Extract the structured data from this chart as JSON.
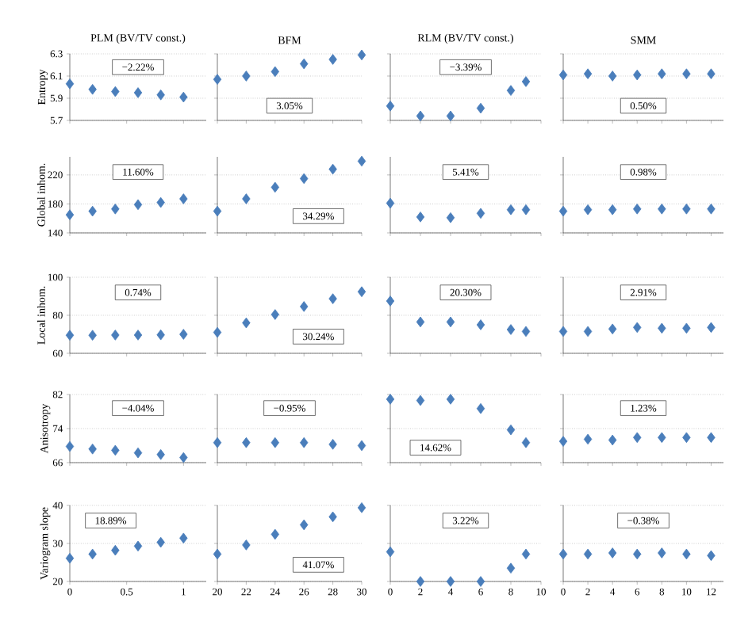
{
  "chart_data": [
    {
      "type": "scatter",
      "title": "PLM (BV/TV const.)",
      "ylabel": "Entropy",
      "x": [
        0,
        0.2,
        0.4,
        0.6,
        0.8,
        1
      ],
      "values": [
        6.03,
        5.98,
        5.96,
        5.95,
        5.93,
        5.91
      ],
      "color": "#4a7ebb",
      "marker": "diamond",
      "grid": "y",
      "xlim": [
        0,
        1.2
      ],
      "xticks": [
        0,
        0.5,
        1
      ],
      "ylim": [
        5.7,
        6.3
      ],
      "yticks": [
        5.7,
        5.9,
        6.1,
        6.3
      ],
      "tick_labels": "y",
      "annotations": [
        "−2.22%"
      ]
    },
    {
      "type": "scatter",
      "title": "BFM",
      "x": [
        20,
        22,
        24,
        26,
        28,
        30
      ],
      "values": [
        6.07,
        6.1,
        6.14,
        6.21,
        6.25,
        6.29
      ],
      "color": "#4a7ebb",
      "marker": "diamond",
      "grid": "y",
      "xlim": [
        20,
        30
      ],
      "xticks": [
        20,
        22,
        24,
        26,
        28,
        30
      ],
      "ylim": [
        5.7,
        6.3
      ],
      "yticks": [
        5.7,
        5.9,
        6.1,
        6.3
      ],
      "tick_labels": false,
      "annotations": [
        "3.05%"
      ]
    },
    {
      "type": "scatter",
      "title": "RLM (BV/TV const.)",
      "x": [
        0,
        2,
        4,
        6,
        8,
        9
      ],
      "values": [
        5.83,
        5.74,
        5.74,
        5.81,
        5.97,
        6.05
      ],
      "color": "#4a7ebb",
      "marker": "diamond",
      "grid": "y",
      "xlim": [
        0,
        10
      ],
      "xticks": [
        0,
        2,
        4,
        6,
        8,
        10
      ],
      "ylim": [
        5.7,
        6.3
      ],
      "yticks": [
        5.7,
        5.9,
        6.1,
        6.3
      ],
      "tick_labels": false,
      "annotations": [
        "−3.39%"
      ]
    },
    {
      "type": "scatter",
      "title": "SMM",
      "x": [
        0,
        2,
        4,
        6,
        8,
        10,
        12
      ],
      "values": [
        6.11,
        6.12,
        6.1,
        6.11,
        6.12,
        6.12,
        6.12
      ],
      "color": "#4a7ebb",
      "marker": "diamond",
      "grid": "y",
      "xlim": [
        0,
        13
      ],
      "xticks": [
        0,
        2,
        4,
        6,
        8,
        10,
        12
      ],
      "ylim": [
        5.7,
        6.3
      ],
      "yticks": [
        5.7,
        5.9,
        6.1,
        6.3
      ],
      "tick_labels": false,
      "annotations": [
        "0.50%"
      ]
    },
    {
      "type": "scatter",
      "ylabel": "Global inhom.",
      "x": [
        0,
        0.2,
        0.4,
        0.6,
        0.8,
        1
      ],
      "values": [
        165,
        170,
        173,
        179,
        182,
        187
      ],
      "color": "#4a7ebb",
      "marker": "diamond",
      "grid": "y",
      "xlim": [
        0,
        1.2
      ],
      "xticks": [
        0,
        0.5,
        1
      ],
      "ylim": [
        140,
        245
      ],
      "yticks": [
        140,
        180,
        220
      ],
      "tick_labels": "y",
      "annotations": [
        "11.60%"
      ]
    },
    {
      "type": "scatter",
      "x": [
        20,
        22,
        24,
        26,
        28,
        30
      ],
      "values": [
        170,
        187,
        203,
        215,
        228,
        239
      ],
      "color": "#4a7ebb",
      "marker": "diamond",
      "grid": "y",
      "xlim": [
        20,
        30
      ],
      "xticks": [
        20,
        22,
        24,
        26,
        28,
        30
      ],
      "ylim": [
        140,
        245
      ],
      "yticks": [
        140,
        180,
        220
      ],
      "tick_labels": false,
      "annotations": [
        "34.29%"
      ]
    },
    {
      "type": "scatter",
      "x": [
        0,
        2,
        4,
        6,
        8,
        9
      ],
      "values": [
        181,
        162,
        161,
        167,
        172,
        172
      ],
      "color": "#4a7ebb",
      "marker": "diamond",
      "grid": "y",
      "xlim": [
        0,
        10
      ],
      "xticks": [
        0,
        2,
        4,
        6,
        8,
        10
      ],
      "ylim": [
        140,
        245
      ],
      "yticks": [
        140,
        180,
        220
      ],
      "tick_labels": false,
      "annotations": [
        "5.41%"
      ]
    },
    {
      "type": "scatter",
      "x": [
        0,
        2,
        4,
        6,
        8,
        10,
        12
      ],
      "values": [
        170,
        172,
        172,
        173,
        173,
        173,
        173
      ],
      "color": "#4a7ebb",
      "marker": "diamond",
      "grid": "y",
      "xlim": [
        0,
        13
      ],
      "xticks": [
        0,
        2,
        4,
        6,
        8,
        10,
        12
      ],
      "ylim": [
        140,
        245
      ],
      "yticks": [
        140,
        180,
        220
      ],
      "tick_labels": false,
      "annotations": [
        "0.98%"
      ]
    },
    {
      "type": "scatter",
      "ylabel": "Local inhom.",
      "x": [
        0,
        0.2,
        0.4,
        0.6,
        0.8,
        1
      ],
      "values": [
        69.5,
        69.5,
        69.6,
        69.6,
        69.7,
        70
      ],
      "color": "#4a7ebb",
      "marker": "diamond",
      "grid": "y",
      "xlim": [
        0,
        1.2
      ],
      "xticks": [
        0,
        0.5,
        1
      ],
      "ylim": [
        60,
        100
      ],
      "yticks": [
        60,
        80,
        100
      ],
      "tick_labels": "y",
      "annotations": [
        "0.74%"
      ]
    },
    {
      "type": "scatter",
      "x": [
        20,
        22,
        24,
        26,
        28,
        30
      ],
      "values": [
        71,
        76,
        80.4,
        84.6,
        88.7,
        92.4
      ],
      "color": "#4a7ebb",
      "marker": "diamond",
      "grid": "y",
      "xlim": [
        20,
        30
      ],
      "xticks": [
        20,
        22,
        24,
        26,
        28,
        30
      ],
      "ylim": [
        60,
        100
      ],
      "yticks": [
        60,
        80,
        100
      ],
      "tick_labels": false,
      "annotations": [
        "30.24%"
      ]
    },
    {
      "type": "scatter",
      "x": [
        0,
        2,
        4,
        6,
        8,
        9
      ],
      "values": [
        87.5,
        76.5,
        76.5,
        75,
        72.5,
        71.5
      ],
      "color": "#4a7ebb",
      "marker": "diamond",
      "grid": "y",
      "xlim": [
        0,
        10
      ],
      "xticks": [
        0,
        2,
        4,
        6,
        8,
        10
      ],
      "ylim": [
        60,
        100
      ],
      "yticks": [
        60,
        80,
        100
      ],
      "tick_labels": false,
      "annotations": [
        "20.30%"
      ]
    },
    {
      "type": "scatter",
      "x": [
        0,
        2,
        4,
        6,
        8,
        10,
        12
      ],
      "values": [
        71.5,
        71.5,
        72.8,
        73.6,
        73.2,
        73.2,
        73.6
      ],
      "color": "#4a7ebb",
      "marker": "diamond",
      "grid": "y",
      "xlim": [
        0,
        13
      ],
      "xticks": [
        0,
        2,
        4,
        6,
        8,
        10,
        12
      ],
      "ylim": [
        60,
        100
      ],
      "yticks": [
        60,
        80,
        100
      ],
      "tick_labels": false,
      "annotations": [
        "2.91%"
      ]
    },
    {
      "type": "scatter",
      "ylabel": "Anisotropy",
      "x": [
        0,
        0.2,
        0.4,
        0.6,
        0.8,
        1
      ],
      "values": [
        69.8,
        69.2,
        68.9,
        68.3,
        67.9,
        67.2
      ],
      "color": "#4a7ebb",
      "marker": "diamond",
      "grid": "y",
      "xlim": [
        0,
        1.2
      ],
      "xticks": [
        0,
        0.5,
        1
      ],
      "ylim": [
        66,
        82
      ],
      "yticks": [
        66,
        74,
        82
      ],
      "tick_labels": "y",
      "annotations": [
        "−4.04%"
      ]
    },
    {
      "type": "scatter",
      "x": [
        20,
        22,
        24,
        26,
        28,
        30
      ],
      "values": [
        70.7,
        70.7,
        70.7,
        70.7,
        70.3,
        70
      ],
      "color": "#4a7ebb",
      "marker": "diamond",
      "grid": "y",
      "xlim": [
        20,
        30
      ],
      "xticks": [
        20,
        22,
        24,
        26,
        28,
        30
      ],
      "ylim": [
        66,
        82
      ],
      "yticks": [
        66,
        74,
        82
      ],
      "tick_labels": false,
      "annotations": [
        "−0.95%"
      ]
    },
    {
      "type": "scatter",
      "x": [
        0,
        2,
        4,
        6,
        8,
        9
      ],
      "values": [
        80.9,
        80.6,
        80.9,
        78.7,
        73.7,
        70.7
      ],
      "color": "#4a7ebb",
      "marker": "diamond",
      "grid": "y",
      "xlim": [
        0,
        10
      ],
      "xticks": [
        0,
        2,
        4,
        6,
        8,
        10
      ],
      "ylim": [
        66,
        82
      ],
      "yticks": [
        66,
        74,
        82
      ],
      "tick_labels": false,
      "annotations": [
        "14.62%"
      ]
    },
    {
      "type": "scatter",
      "x": [
        0,
        2,
        4,
        6,
        8,
        10,
        12
      ],
      "values": [
        71,
        71.5,
        71.3,
        71.9,
        71.9,
        71.9,
        71.9
      ],
      "color": "#4a7ebb",
      "marker": "diamond",
      "grid": "y",
      "xlim": [
        0,
        13
      ],
      "xticks": [
        0,
        2,
        4,
        6,
        8,
        10,
        12
      ],
      "ylim": [
        66,
        82
      ],
      "yticks": [
        66,
        74,
        82
      ],
      "tick_labels": false,
      "annotations": [
        "1.23%"
      ]
    },
    {
      "type": "scatter",
      "ylabel": "Variogram slope",
      "x": [
        0,
        0.2,
        0.4,
        0.6,
        0.8,
        1
      ],
      "values": [
        26.1,
        27.2,
        28.2,
        29.3,
        30.3,
        31.4
      ],
      "color": "#4a7ebb",
      "marker": "diamond",
      "grid": "y",
      "xlim": [
        0,
        1.2
      ],
      "xticks": [
        0,
        0.5,
        1
      ],
      "ylim": [
        20,
        40
      ],
      "yticks": [
        20,
        30,
        40
      ],
      "annotations": [
        "18.89%"
      ]
    },
    {
      "type": "scatter",
      "x": [
        20,
        22,
        24,
        26,
        28,
        30
      ],
      "values": [
        27.2,
        29.6,
        32.4,
        34.9,
        37,
        39.4
      ],
      "color": "#4a7ebb",
      "marker": "diamond",
      "grid": "y",
      "xlim": [
        20,
        30
      ],
      "xticks": [
        20,
        22,
        24,
        26,
        28,
        30
      ],
      "ylim": [
        20,
        40
      ],
      "yticks": [
        20,
        30,
        40
      ],
      "tick_labels": "x",
      "annotations": [
        "41.07%"
      ]
    },
    {
      "type": "scatter",
      "x": [
        0,
        2,
        4,
        6,
        8,
        9
      ],
      "values": [
        27.8,
        20,
        20,
        20,
        23.5,
        27.2
      ],
      "color": "#4a7ebb",
      "marker": "diamond",
      "grid": "y",
      "xlim": [
        0,
        10
      ],
      "xticks": [
        0,
        2,
        4,
        6,
        8,
        10
      ],
      "ylim": [
        20,
        40
      ],
      "yticks": [
        20,
        30,
        40
      ],
      "tick_labels": "x",
      "annotations": [
        "3.22%"
      ]
    },
    {
      "type": "scatter",
      "x": [
        0,
        2,
        4,
        6,
        8,
        10,
        12
      ],
      "values": [
        27.2,
        27.2,
        27.5,
        27.2,
        27.5,
        27.2,
        26.8
      ],
      "color": "#4a7ebb",
      "marker": "diamond",
      "grid": "y",
      "xlim": [
        0,
        13
      ],
      "xticks": [
        0,
        2,
        4,
        6,
        8,
        10,
        12
      ],
      "ylim": [
        20,
        40
      ],
      "yticks": [
        20,
        30,
        40
      ],
      "tick_labels": "x",
      "annotations": [
        "−0.38%"
      ]
    }
  ]
}
